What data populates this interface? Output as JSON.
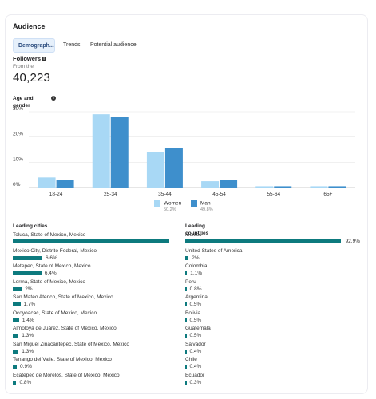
{
  "card": {
    "title": "Audience",
    "tabs": [
      {
        "label": "Demograph..."
      },
      {
        "label": "Trends"
      },
      {
        "label": "Potential audience"
      }
    ]
  },
  "followers": {
    "label": "Followers",
    "sub": "From the",
    "count": "40,223"
  },
  "age_gender_label": "Age and gender",
  "chart_data": {
    "type": "bar",
    "categories": [
      "18-24",
      "25-34",
      "35-44",
      "45-54",
      "55-64",
      "65+"
    ],
    "series": [
      {
        "name": "Women",
        "values": [
          4,
          29,
          14,
          2.5,
          0.5,
          0.5
        ],
        "color": "#a8d8f5"
      },
      {
        "name": "Man",
        "values": [
          3,
          28,
          15.5,
          3,
          0.5,
          0.5
        ],
        "color": "#3e8fcc"
      }
    ],
    "ylim": [
      0,
      30
    ],
    "yticks": [
      "0%",
      "10%",
      "20%",
      "30%"
    ],
    "legend": [
      {
        "label": "Women",
        "pct": "50.2%"
      },
      {
        "label": "Man",
        "pct": "49.8%"
      }
    ],
    "grid": true
  },
  "leading_cities": {
    "heading": "Leading cities",
    "items": [
      {
        "name": "Toluca, State of Mexico, Mexico",
        "value": 35,
        "label": "35%"
      },
      {
        "name": "Mexico City, Distrito Federal, Mexico",
        "value": 6.6,
        "label": "6.6%"
      },
      {
        "name": "Metepec, State of Mexico, Mexico",
        "value": 6.4,
        "label": "6.4%"
      },
      {
        "name": "Lerma, State of Mexico, Mexico",
        "value": 2,
        "label": "2%"
      },
      {
        "name": "San Mateo Atenco, State of Mexico, Mexico",
        "value": 1.7,
        "label": "1.7%"
      },
      {
        "name": "Ocoyoacac, State of Mexico, Mexico",
        "value": 1.4,
        "label": "1.4%"
      },
      {
        "name": "Almoloya de Juárez, State of Mexico, Mexico",
        "value": 1.3,
        "label": "1.3%"
      },
      {
        "name": "San Miguel Zinacantepec, State of Mexico, Mexico",
        "value": 1.3,
        "label": "1.3%"
      },
      {
        "name": "Tenango del Valle, State of Mexico, Mexico",
        "value": 0.9,
        "label": "0.9%"
      },
      {
        "name": "Ecatepec de Morelos, State of Mexico, Mexico",
        "value": 0.8,
        "label": "0.8%"
      }
    ]
  },
  "leading_countries": {
    "heading": "Leading countries",
    "items": [
      {
        "name": "Mexico",
        "value": 92.9,
        "label": "92.9%"
      },
      {
        "name": "United States of America",
        "value": 2,
        "label": "2%"
      },
      {
        "name": "Colombia",
        "value": 1.1,
        "label": "1.1%"
      },
      {
        "name": "Peru",
        "value": 0.8,
        "label": "0.8%"
      },
      {
        "name": "Argentina",
        "value": 0.5,
        "label": "0.5%"
      },
      {
        "name": "Bolivia",
        "value": 0.5,
        "label": "0.5%"
      },
      {
        "name": "Guatemala",
        "value": 0.5,
        "label": "0.5%"
      },
      {
        "name": "Salvador",
        "value": 0.4,
        "label": "0.4%"
      },
      {
        "name": "Chile",
        "value": 0.4,
        "label": "0.4%"
      },
      {
        "name": "Ecuador",
        "value": 0.3,
        "label": "0.3%"
      }
    ]
  },
  "colors": {
    "accent": "#0d7a7e",
    "women": "#a8d8f5",
    "man": "#3e8fcc"
  }
}
